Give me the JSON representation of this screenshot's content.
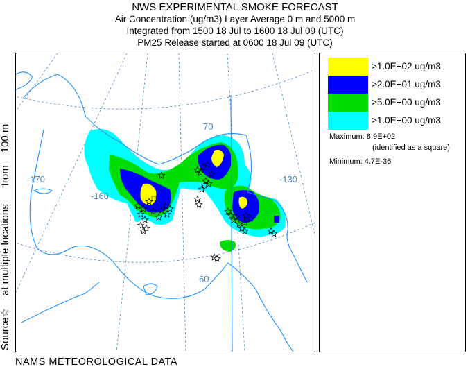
{
  "header": {
    "title": "NWS EXPERIMENTAL SMOKE FORECAST",
    "line2": "Air Concentration (ug/m3) Layer Average    0 m and  5000 m",
    "line3": "Integrated from 1500 18 Jul to 1600 18 Jul 09 (UTC)",
    "line4": "PM25 Release started at 0600 18 Jul 09 (UTC)"
  },
  "side_label": {
    "part1": "Source☆",
    "part2": "at multiple locations",
    "part3": "from",
    "part4": "100 m"
  },
  "footer": {
    "label": "NAMS METEOROLOGICAL DATA"
  },
  "map": {
    "graticule_labels": [
      "-170",
      "-160",
      "-130",
      "70",
      "60"
    ],
    "colors": {
      "land_outline": "#1e90ff",
      "graticule": "#4a86c5",
      "level_100": "#ffff00",
      "level_20": "#0000ff",
      "level_5": "#00dd00",
      "level_1": "#00ffff"
    }
  },
  "legend": {
    "items": [
      {
        "label": ">1.0E+02 ug/m3",
        "color": "#ffff00"
      },
      {
        "label": ">2.0E+01 ug/m3",
        "color": "#0000ff"
      },
      {
        "label": ">5.0E+00 ug/m3",
        "color": "#00dd00"
      },
      {
        "label": ">1.0E+00 ug/m3",
        "color": "#00ffff"
      }
    ],
    "maximum": "Maximum: 8.9E+02",
    "maximum_note": "(identified as a square)",
    "minimum": "Minimum: 4.7E-36"
  }
}
